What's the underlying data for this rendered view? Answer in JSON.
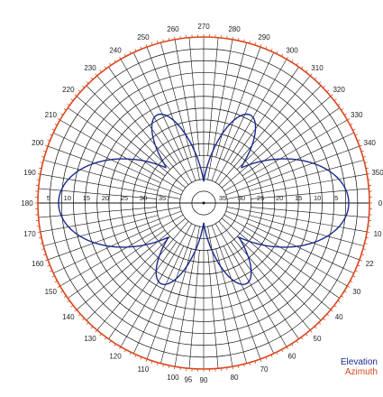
{
  "chart_data": {
    "type": "polar",
    "grid": true,
    "angular_ticks": [
      "0",
      "5",
      "10",
      "15",
      "20",
      "25",
      "30",
      "35",
      "40",
      "45",
      "50",
      "55",
      "60",
      "65",
      "70",
      "75",
      "80",
      "85",
      "90",
      "95",
      "100",
      "105",
      "110",
      "115",
      "120",
      "125",
      "130",
      "135",
      "140",
      "145",
      "150",
      "155",
      "160",
      "165",
      "170",
      "175",
      "180",
      "185",
      "190",
      "195",
      "200",
      "205",
      "210",
      "215",
      "220",
      "225",
      "230",
      "235",
      "240",
      "245",
      "250",
      "255",
      "260",
      "265",
      "270",
      "275",
      "280",
      "285",
      "290",
      "295",
      "300",
      "305",
      "310",
      "315",
      "320",
      "325",
      "330",
      "335",
      "340",
      "345",
      "350",
      "355"
    ],
    "angular_labels_shown": [
      "0",
      "10",
      "22",
      "30",
      "40",
      "50",
      "60",
      "70",
      "80",
      "90",
      "95",
      "100",
      "110",
      "120",
      "130",
      "140",
      "150",
      "160",
      "170",
      "180",
      "190",
      "200",
      "210",
      "220",
      "230",
      "240",
      "250",
      "260",
      "270",
      "280",
      "290",
      "300",
      "310",
      "320",
      "330",
      "340",
      "350"
    ],
    "radial_ticks_left": [
      "5",
      "10",
      "15",
      "20",
      "25",
      "30",
      "35"
    ],
    "radial_ticks_right": [
      "35",
      "30",
      "25",
      "20",
      "15",
      "10",
      "5"
    ],
    "radial_range": [
      0,
      40
    ],
    "series": [
      {
        "name": "Elevation",
        "color": "#1a2b8c",
        "description_lobes": [
          {
            "angle_deg": 0,
            "peak_db": 35
          },
          {
            "angle_deg": 180,
            "peak_db": 35
          },
          {
            "angle_deg": 62,
            "peak_db": 22
          },
          {
            "angle_deg": 118,
            "peak_db": 22
          },
          {
            "angle_deg": 242,
            "peak_db": 24
          },
          {
            "angle_deg": 298,
            "peak_db": 24
          }
        ]
      },
      {
        "name": "Azimuth",
        "color": "#d9481e",
        "description_lobes": [
          {
            "angle_deg": "all",
            "peak_db": 40
          }
        ]
      }
    ]
  },
  "legend": {
    "elevation": "Elevation",
    "azimuth": "Azimuth"
  }
}
